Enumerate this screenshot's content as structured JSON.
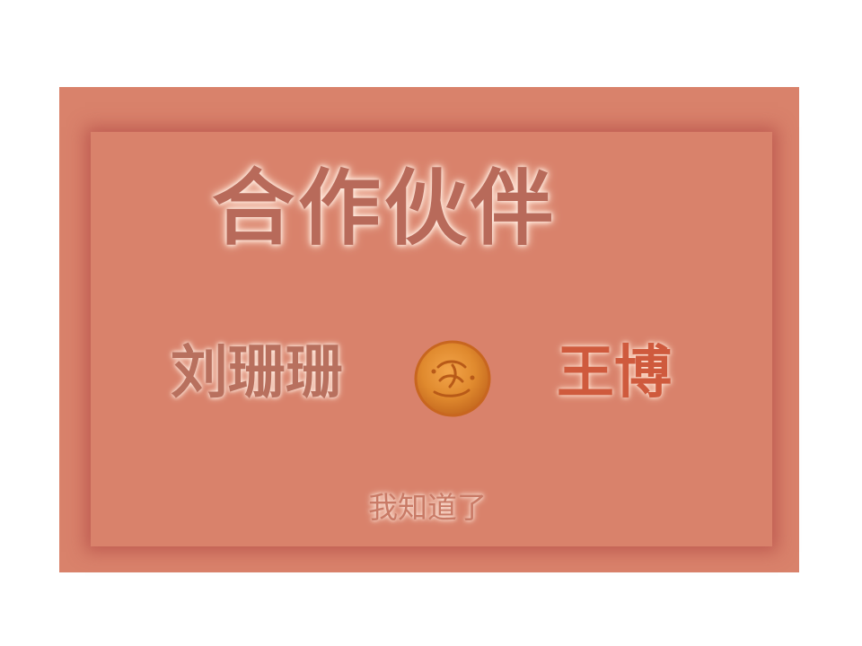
{
  "dialog": {
    "title": "合作伙伴",
    "partner_left": "刘珊珊",
    "partner_right": "王博",
    "confirm_label": "我知道了",
    "center_icon": "orange-coin-icon"
  },
  "colors": {
    "background": "#ffffff",
    "dialog_fill": "#d9826b",
    "title_text": "#b86a5a",
    "right_name_text": "#cf5a3d",
    "coin": "#e0852d"
  }
}
